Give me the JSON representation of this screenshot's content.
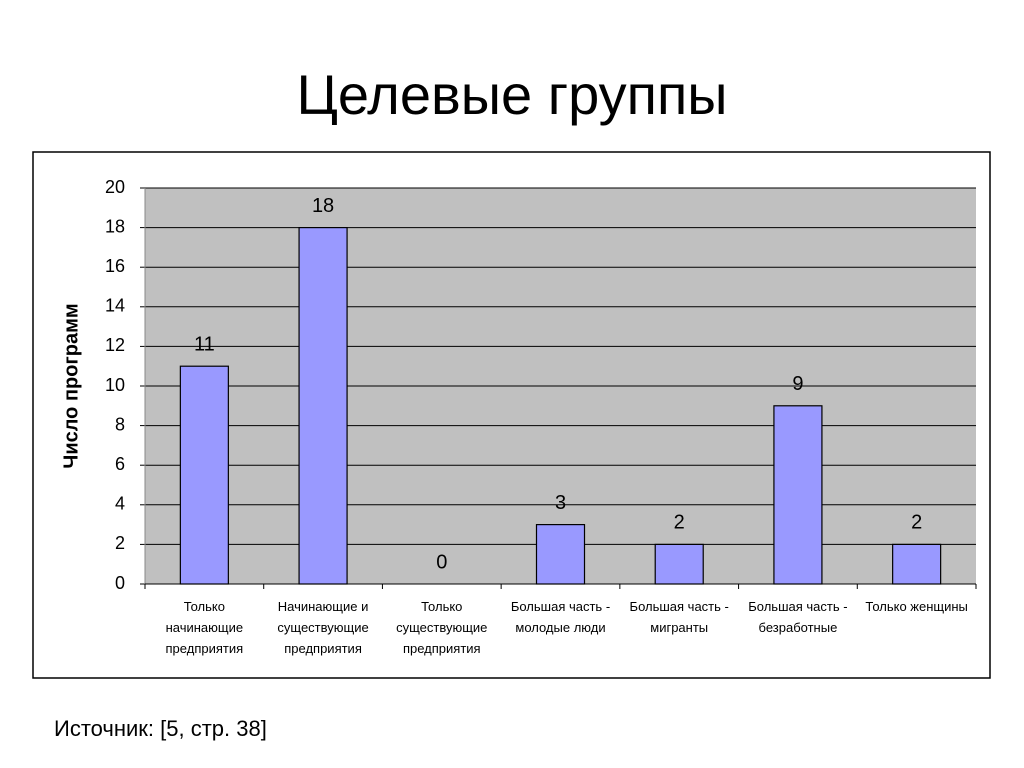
{
  "chart_data": {
    "type": "bar",
    "title": "Целевые группы",
    "y_label": "Число программ",
    "categories": [
      "Только начинающие предприятия",
      "Начинающие и существующие предприятия",
      "Только существующие предприятия",
      "Большая часть - молодые люди",
      "Большая часть - мигранты",
      "Большая часть - безработные",
      "Только женщины"
    ],
    "values": [
      11,
      18,
      0,
      3,
      2,
      9,
      2
    ],
    "color": "#9999ff",
    "ylim": [
      0,
      20
    ],
    "yticks": [
      0,
      2,
      4,
      6,
      8,
      10,
      12,
      14,
      16,
      18,
      20
    ],
    "grid": true,
    "source": "Источник: [5, стр. 38]"
  }
}
